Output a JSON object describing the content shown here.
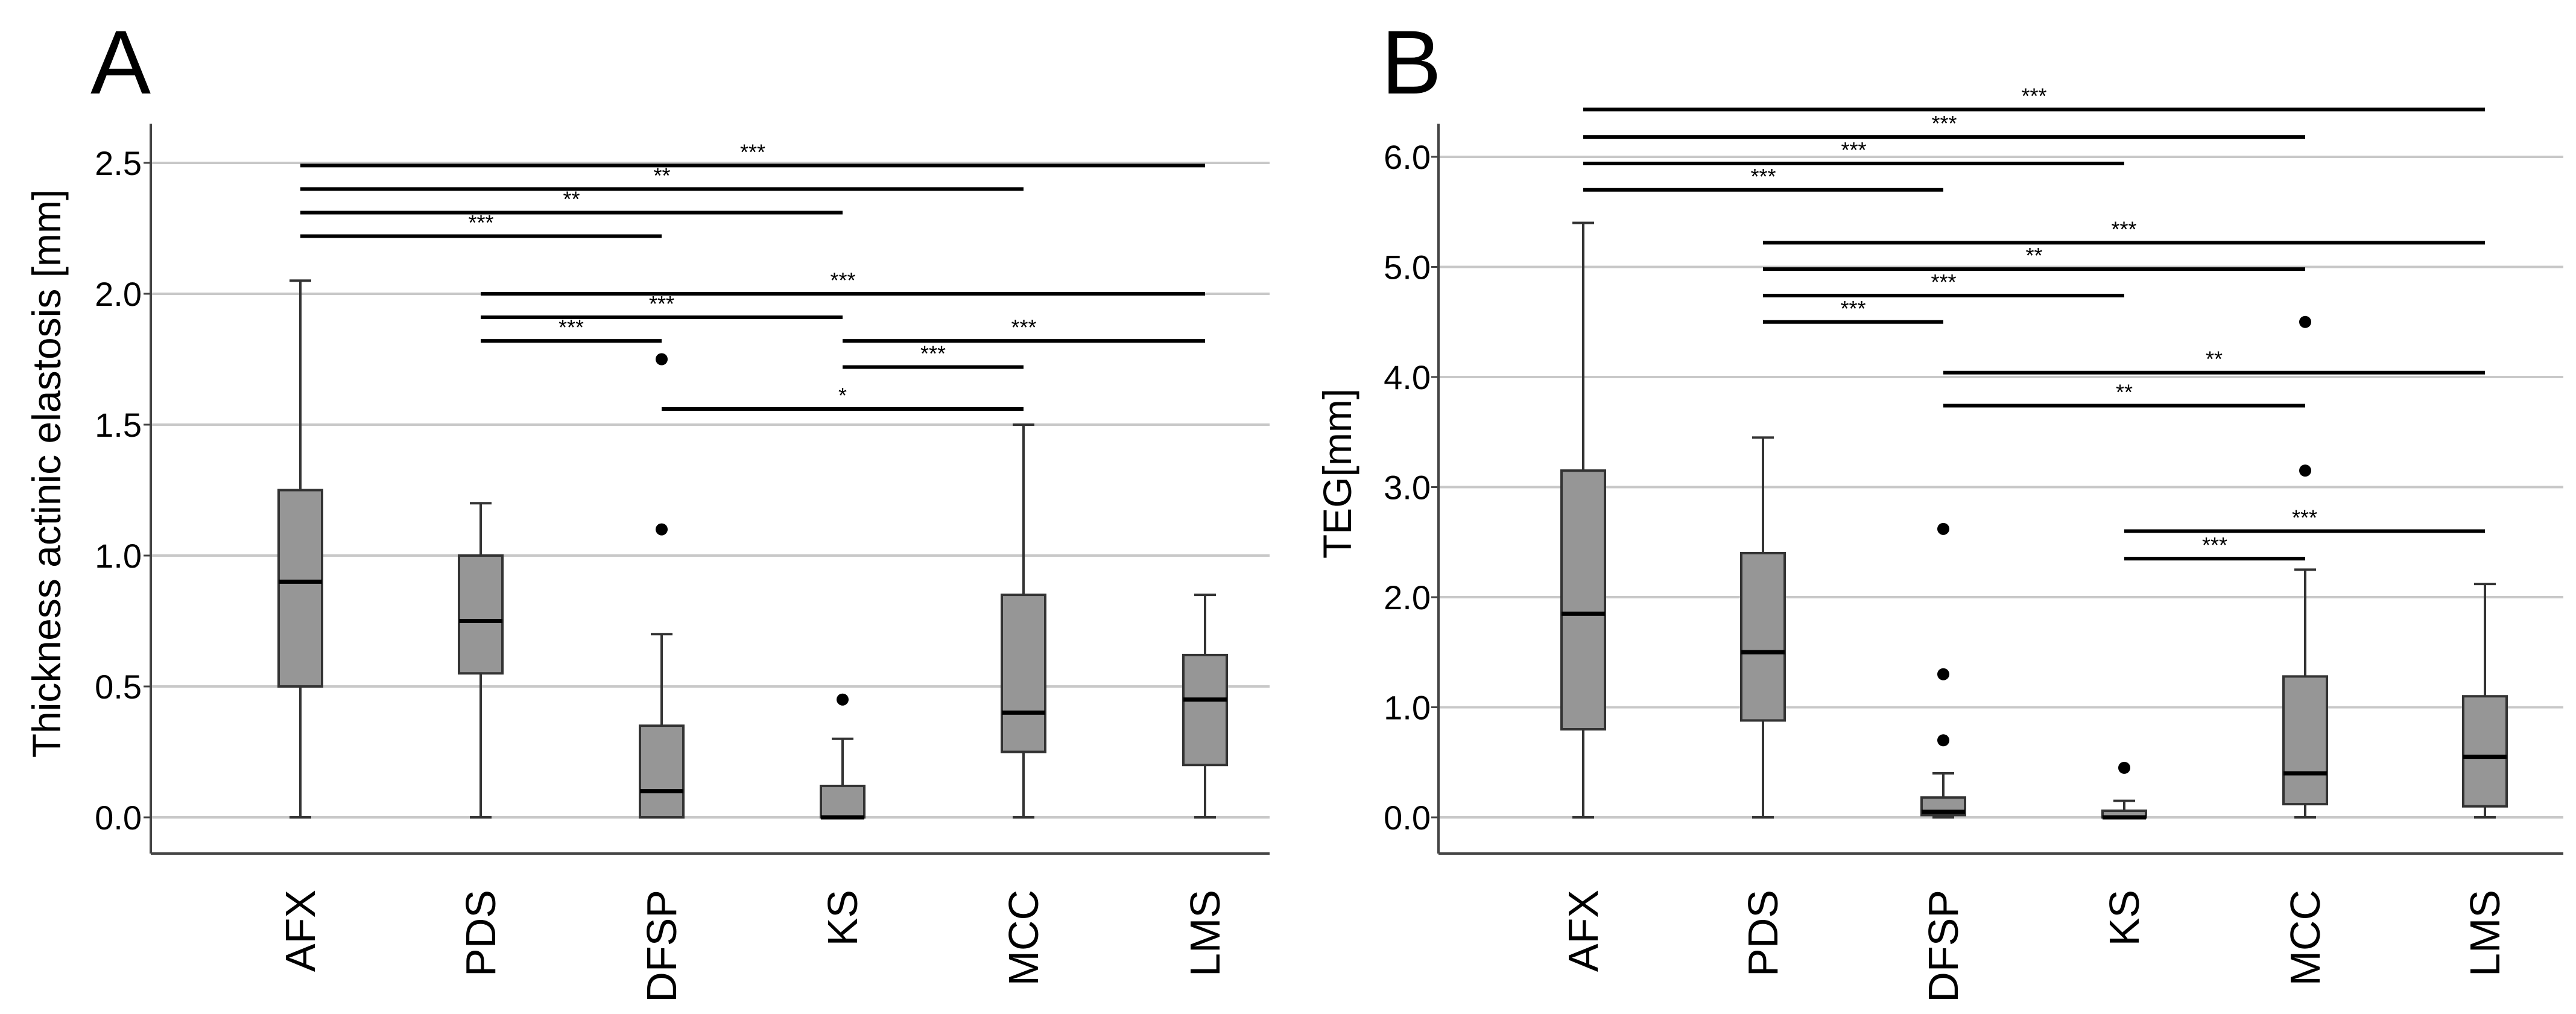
{
  "chart_data": [
    {
      "panel": "A",
      "type": "box",
      "ylabel": "Thickness actinic elastosis [mm]",
      "xlabel": "",
      "ylim": [
        -0.13,
        2.65
      ],
      "yticks": [
        0.0,
        0.5,
        1.0,
        1.5,
        2.0,
        2.5
      ],
      "ytick_labels": [
        "0.0",
        "0.5",
        "1.0",
        "1.5",
        "2.0",
        "2.5"
      ],
      "grid": true,
      "categories": [
        "AFX",
        "PDS",
        "DFSP",
        "KS",
        "MCC",
        "LMS"
      ],
      "boxes": [
        {
          "category": "AFX",
          "min": 0.0,
          "q1": 0.5,
          "median": 0.9,
          "q3": 1.25,
          "max": 2.05,
          "outliers": []
        },
        {
          "category": "PDS",
          "min": 0.0,
          "q1": 0.55,
          "median": 0.75,
          "q3": 1.0,
          "max": 1.2,
          "outliers": []
        },
        {
          "category": "DFSP",
          "min": 0.0,
          "q1": 0.0,
          "median": 0.1,
          "q3": 0.35,
          "max": 0.7,
          "outliers": [
            1.1,
            1.75
          ]
        },
        {
          "category": "KS",
          "min": 0.0,
          "q1": 0.0,
          "median": 0.0,
          "q3": 0.12,
          "max": 0.3,
          "outliers": [
            0.45
          ]
        },
        {
          "category": "MCC",
          "min": 0.0,
          "q1": 0.25,
          "median": 0.4,
          "q3": 0.85,
          "max": 1.5,
          "outliers": []
        },
        {
          "category": "LMS",
          "min": 0.0,
          "q1": 0.2,
          "median": 0.45,
          "q3": 0.62,
          "max": 0.85,
          "outliers": []
        }
      ],
      "significance": [
        {
          "from": "AFX",
          "to": "LMS",
          "y": 2.49,
          "label": "***"
        },
        {
          "from": "AFX",
          "to": "MCC",
          "y": 2.4,
          "label": "**"
        },
        {
          "from": "AFX",
          "to": "KS",
          "y": 2.31,
          "label": "**"
        },
        {
          "from": "AFX",
          "to": "DFSP",
          "y": 2.22,
          "label": "***"
        },
        {
          "from": "PDS",
          "to": "LMS",
          "y": 2.0,
          "label": "***"
        },
        {
          "from": "PDS",
          "to": "KS",
          "y": 1.91,
          "label": "***"
        },
        {
          "from": "KS",
          "to": "LMS",
          "y": 1.82,
          "label": "***"
        },
        {
          "from": "PDS",
          "to": "DFSP",
          "y": 1.82,
          "label": "***"
        },
        {
          "from": "KS",
          "to": "MCC",
          "y": 1.72,
          "label": "***"
        },
        {
          "from": "DFSP",
          "to": "MCC",
          "y": 1.56,
          "label": "*"
        }
      ]
    },
    {
      "panel": "B",
      "type": "box",
      "ylabel": "TEG[mm]",
      "xlabel": "",
      "ylim": [
        -0.33,
        6.45
      ],
      "yticks": [
        0.0,
        1.0,
        2.0,
        3.0,
        4.0,
        5.0,
        6.0
      ],
      "ytick_labels": [
        "0.0",
        "1.0",
        "2.0",
        "3.0",
        "4.0",
        "5.0",
        "6.0"
      ],
      "grid": true,
      "categories": [
        "AFX",
        "PDS",
        "DFSP",
        "KS",
        "MCC",
        "LMS"
      ],
      "boxes": [
        {
          "category": "AFX",
          "min": 0.0,
          "q1": 0.8,
          "median": 1.85,
          "q3": 3.15,
          "max": 5.4,
          "outliers": []
        },
        {
          "category": "PDS",
          "min": 0.0,
          "q1": 0.88,
          "median": 1.5,
          "q3": 2.4,
          "max": 3.45,
          "outliers": []
        },
        {
          "category": "DFSP",
          "min": 0.0,
          "q1": 0.02,
          "median": 0.05,
          "q3": 0.18,
          "max": 0.4,
          "outliers": [
            0.7,
            1.3,
            2.62
          ]
        },
        {
          "category": "KS",
          "min": 0.0,
          "q1": 0.0,
          "median": 0.0,
          "q3": 0.06,
          "max": 0.15,
          "outliers": [
            0.45
          ]
        },
        {
          "category": "MCC",
          "min": 0.0,
          "q1": 0.12,
          "median": 0.4,
          "q3": 1.28,
          "max": 2.25,
          "outliers": [
            3.15,
            4.5
          ]
        },
        {
          "category": "LMS",
          "min": 0.0,
          "q1": 0.1,
          "median": 0.55,
          "q3": 1.1,
          "max": 2.12,
          "outliers": []
        }
      ],
      "significance": [
        {
          "from": "AFX",
          "to": "LMS",
          "y": 6.43,
          "label": "***"
        },
        {
          "from": "AFX",
          "to": "MCC",
          "y": 6.18,
          "label": "***"
        },
        {
          "from": "AFX",
          "to": "KS",
          "y": 5.94,
          "label": "***"
        },
        {
          "from": "AFX",
          "to": "DFSP",
          "y": 5.7,
          "label": "***"
        },
        {
          "from": "PDS",
          "to": "LMS",
          "y": 5.22,
          "label": "***"
        },
        {
          "from": "PDS",
          "to": "MCC",
          "y": 4.98,
          "label": "**"
        },
        {
          "from": "PDS",
          "to": "KS",
          "y": 4.74,
          "label": "***"
        },
        {
          "from": "PDS",
          "to": "DFSP",
          "y": 4.5,
          "label": "***"
        },
        {
          "from": "DFSP",
          "to": "LMS",
          "y": 4.04,
          "label": "**"
        },
        {
          "from": "DFSP",
          "to": "MCC",
          "y": 3.74,
          "label": "**"
        },
        {
          "from": "KS",
          "to": "LMS",
          "y": 2.6,
          "label": "***"
        },
        {
          "from": "KS",
          "to": "MCC",
          "y": 2.35,
          "label": "***"
        }
      ]
    }
  ]
}
